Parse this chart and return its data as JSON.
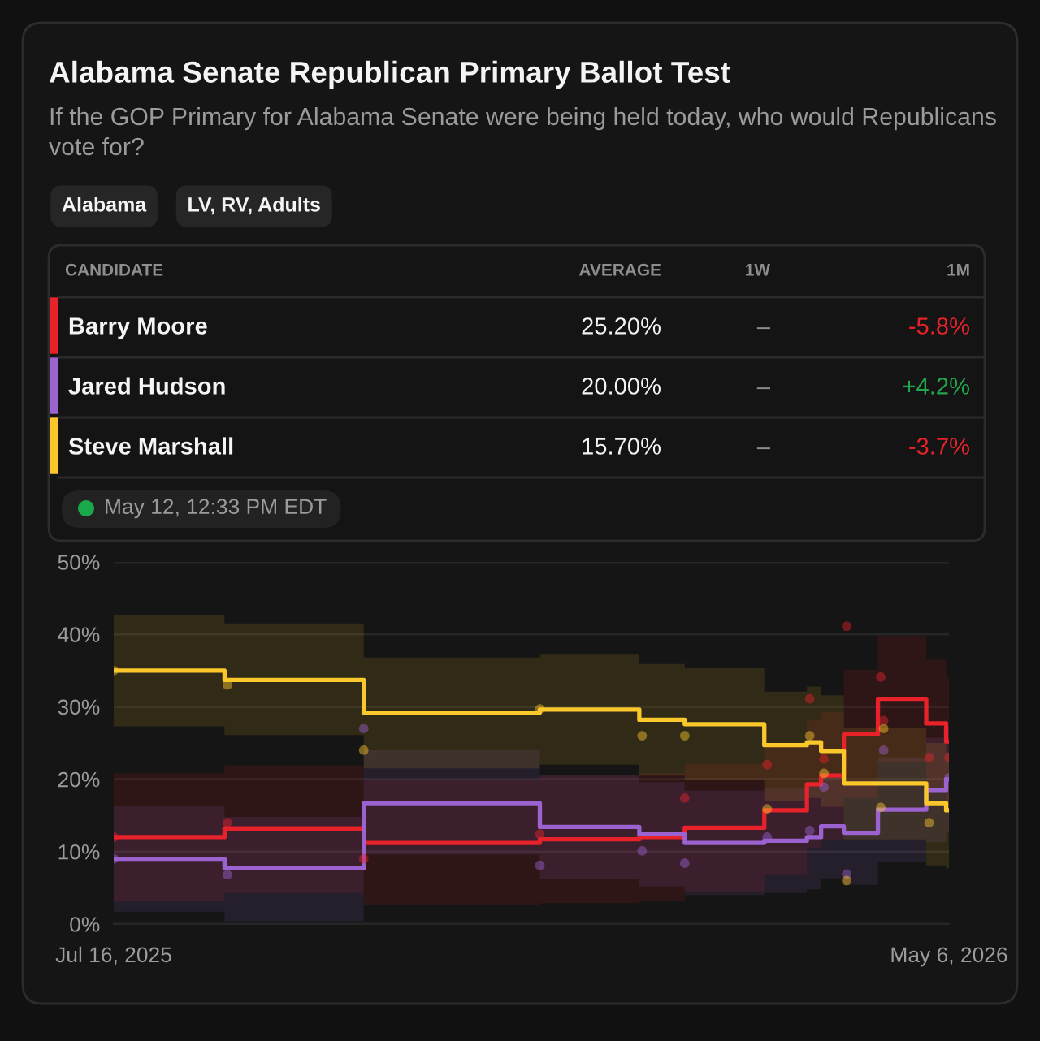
{
  "chart_data": {
    "type": "step",
    "title": "Alabama Senate Republican Primary Ballot Test",
    "subtitle": "If the GOP Primary for Alabama Senate were being held today, who would Republicans vote for?",
    "annotations": [
      "Alabama",
      "LV, RV, Adults",
      "CANDIDATE",
      "AVERAGE",
      "1W",
      "1M",
      "25.20%",
      "–",
      "-5.8%",
      "20.00%",
      "–",
      "+4.2%",
      "15.70%",
      "–",
      "-3.7%",
      "May 12, 12:33 PM EDT"
    ],
    "x": [
      "2025-07-16",
      "2025-08-24",
      "2025-10-12",
      "2025-12-13",
      "2026-01-17",
      "2026-02-02",
      "2026-03-02",
      "2026-03-17",
      "2026-03-22",
      "2026-03-30",
      "2026-04-11",
      "2026-04-28",
      "2026-05-05",
      "2026-05-06"
    ],
    "series": [
      {
        "name": "Barry Moore",
        "color": "#e8222a",
        "values": [
          12.0,
          13.2,
          11.2,
          11.7,
          12.0,
          13.3,
          15.7,
          19.3,
          20.5,
          26.2,
          31.1,
          27.7,
          25.2,
          25.2
        ],
        "lower": [
          3.2,
          4.3,
          2.6,
          2.9,
          3.2,
          4.5,
          6.9,
          10.5,
          11.7,
          17.4,
          22.3,
          18.9,
          16.4,
          16.4
        ],
        "upper": [
          20.8,
          21.9,
          20.0,
          20.5,
          20.8,
          22.1,
          24.5,
          28.1,
          29.3,
          35.1,
          39.8,
          36.5,
          34.0,
          34.0
        ]
      },
      {
        "name": "Jared Hudson",
        "color": "#9c62d0",
        "values": [
          9.0,
          7.7,
          16.7,
          13.4,
          12.4,
          11.2,
          11.5,
          12.0,
          13.5,
          12.6,
          15.8,
          18.5,
          20.0,
          20.0
        ],
        "lower": [
          1.7,
          0.4,
          9.6,
          6.2,
          5.2,
          4.0,
          4.3,
          4.8,
          6.3,
          5.4,
          8.6,
          11.3,
          12.8,
          12.8
        ],
        "upper": [
          16.3,
          14.8,
          24.0,
          20.6,
          19.6,
          18.4,
          18.7,
          19.2,
          20.7,
          19.8,
          23.0,
          25.7,
          27.2,
          27.2
        ]
      },
      {
        "name": "Steve Marshall",
        "color": "#fbc82c",
        "values": [
          35.0,
          33.7,
          29.2,
          29.6,
          28.2,
          27.6,
          24.7,
          25.1,
          23.9,
          19.4,
          19.4,
          16.7,
          15.7,
          15.7
        ],
        "lower": [
          27.3,
          26.1,
          21.5,
          22.0,
          20.5,
          19.9,
          17.0,
          17.4,
          16.2,
          11.7,
          11.7,
          8.1,
          7.7,
          7.7
        ],
        "upper": [
          42.7,
          41.5,
          36.8,
          37.2,
          35.9,
          35.3,
          32.1,
          32.8,
          31.6,
          27.1,
          27.1,
          25.0,
          23.7,
          23.7
        ]
      },
      {
        "type": "scatter",
        "color": "#e8222a",
        "x": [
          "2025-07-16",
          "2025-08-25",
          "2025-10-12",
          "2025-12-13",
          "2026-02-02",
          "2026-03-03",
          "2026-03-18",
          "2026-03-23",
          "2026-03-31",
          "2026-04-12",
          "2026-04-13",
          "2026-04-29",
          "2026-05-06"
        ],
        "values": [
          12.0,
          14.0,
          9.0,
          12.4,
          17.4,
          22.0,
          31.1,
          22.8,
          41.1,
          34.1,
          28.1,
          23.0,
          23.0
        ]
      },
      {
        "type": "scatter",
        "color": "#9c62d0",
        "x": [
          "2025-07-16",
          "2025-08-25",
          "2025-10-12",
          "2025-12-13",
          "2026-01-18",
          "2026-02-02",
          "2026-03-03",
          "2026-03-18",
          "2026-03-23",
          "2026-03-31",
          "2026-04-13",
          "2026-05-06"
        ],
        "values": [
          9.0,
          6.8,
          27.0,
          8.1,
          10.1,
          8.4,
          12.0,
          12.9,
          18.9,
          6.9,
          24.0,
          20.2
        ]
      },
      {
        "type": "scatter",
        "color": "#fbc82c",
        "x": [
          "2025-07-16",
          "2025-08-25",
          "2025-10-12",
          "2025-12-13",
          "2026-01-18",
          "2026-02-02",
          "2026-03-03",
          "2026-03-18",
          "2026-03-23",
          "2026-03-31",
          "2026-04-12",
          "2026-04-13",
          "2026-04-29"
        ],
        "values": [
          35.0,
          33.0,
          24.0,
          29.7,
          26.0,
          26.0,
          15.9,
          26.0,
          20.8,
          6.0,
          16.1,
          27.0,
          14.0
        ]
      }
    ],
    "xlim": [
      "2025-07-16",
      "2026-05-06"
    ],
    "xticks": [
      {
        "value": "2025-07-16",
        "label": "Jul 16, 2025"
      },
      {
        "value": "2026-05-06",
        "label": "May 6, 2026"
      }
    ],
    "ylim": [
      0,
      50
    ],
    "yticks": [
      {
        "value": 0,
        "label": "0%"
      },
      {
        "value": 10,
        "label": "10%"
      },
      {
        "value": 20,
        "label": "20%"
      },
      {
        "value": 30,
        "label": "30%"
      },
      {
        "value": 40,
        "label": "40%"
      },
      {
        "value": 50,
        "label": "50%"
      }
    ],
    "grid": "y",
    "legend": "top"
  }
}
